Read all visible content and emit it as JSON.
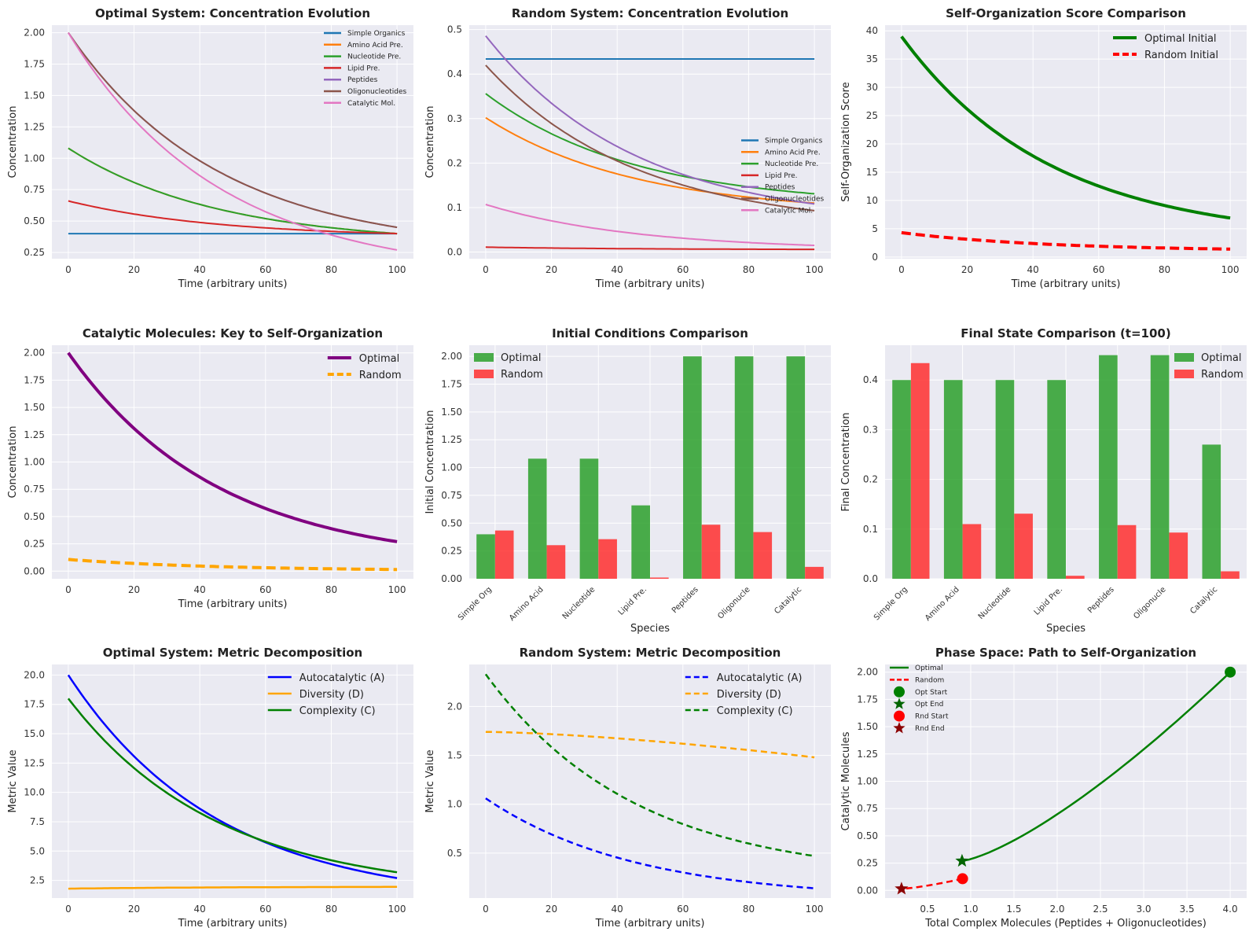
{
  "chart_data": [
    {
      "id": "p1",
      "type": "line",
      "title": "Optimal System: Concentration Evolution",
      "xlabel": "Time (arbitrary units)",
      "ylabel": "Concentration",
      "xlim": [
        -5,
        105
      ],
      "ylim": [
        0.2,
        2.06
      ],
      "xticks": [
        0,
        20,
        40,
        60,
        80,
        100
      ],
      "yticks": [
        0.25,
        0.5,
        0.75,
        1.0,
        1.25,
        1.5,
        1.75,
        2.0
      ],
      "ydecimals": 2,
      "legend": {
        "position": "top-right",
        "small": true
      },
      "series": [
        {
          "name": "Simple Organics",
          "color": "#1f77b4",
          "start": 0.4,
          "end": 0.4,
          "width": 2
        },
        {
          "name": "Amino Acid Pre.",
          "color": "#ff7f0e",
          "start": 1.08,
          "end": 0.4,
          "width": 2
        },
        {
          "name": "Nucleotide Pre.",
          "color": "#2ca02c",
          "start": 1.08,
          "end": 0.4,
          "width": 2
        },
        {
          "name": "Lipid Pre.",
          "color": "#d62728",
          "start": 0.66,
          "end": 0.4,
          "width": 2
        },
        {
          "name": "Peptides",
          "color": "#9467bd",
          "start": 2.0,
          "end": 0.45,
          "width": 2
        },
        {
          "name": "Oligonucleotides",
          "color": "#8c564b",
          "start": 2.0,
          "end": 0.45,
          "width": 2
        },
        {
          "name": "Catalytic Mol.",
          "color": "#e377c2",
          "start": 2.0,
          "end": 0.27,
          "width": 2
        }
      ]
    },
    {
      "id": "p2",
      "type": "line",
      "title": "Random System: Concentration Evolution",
      "xlabel": "Time (arbitrary units)",
      "ylabel": "Concentration",
      "xlim": [
        -5,
        105
      ],
      "ylim": [
        -0.015,
        0.51
      ],
      "xticks": [
        0,
        20,
        40,
        60,
        80,
        100
      ],
      "yticks": [
        0.0,
        0.1,
        0.2,
        0.3,
        0.4,
        0.5
      ],
      "ydecimals": 1,
      "legend": {
        "position": "center-right",
        "small": true
      },
      "series": [
        {
          "name": "Simple Organics",
          "color": "#1f77b4",
          "start": 0.434,
          "end": 0.434,
          "width": 2
        },
        {
          "name": "Amino Acid Pre.",
          "color": "#ff7f0e",
          "start": 0.302,
          "end": 0.11,
          "width": 2
        },
        {
          "name": "Nucleotide Pre.",
          "color": "#2ca02c",
          "start": 0.356,
          "end": 0.131,
          "width": 2
        },
        {
          "name": "Lipid Pre.",
          "color": "#d62728",
          "start": 0.011,
          "end": 0.006,
          "width": 2
        },
        {
          "name": "Peptides",
          "color": "#9467bd",
          "start": 0.486,
          "end": 0.108,
          "width": 2
        },
        {
          "name": "Oligonucleotides",
          "color": "#8c564b",
          "start": 0.42,
          "end": 0.093,
          "width": 2
        },
        {
          "name": "Catalytic Mol.",
          "color": "#e377c2",
          "start": 0.107,
          "end": 0.015,
          "width": 2
        }
      ]
    },
    {
      "id": "p3",
      "type": "line",
      "title": "Self-Organization Score Comparison",
      "xlabel": "Time (arbitrary units)",
      "ylabel": "Self-Organization Score",
      "xlim": [
        -5,
        105
      ],
      "ylim": [
        -0.3,
        41
      ],
      "xticks": [
        0,
        20,
        40,
        60,
        80,
        100
      ],
      "yticks": [
        0,
        5,
        10,
        15,
        20,
        25,
        30,
        35,
        40
      ],
      "ydecimals": 0,
      "legend": {
        "position": "top-right",
        "small": false
      },
      "series": [
        {
          "name": "Optimal Initial",
          "color": "#008000",
          "start": 39.0,
          "end": 6.9,
          "width": 4
        },
        {
          "name": "Random Initial",
          "color": "#ff0000",
          "start": 4.3,
          "end": 1.4,
          "width": 4,
          "dash": "12,6"
        }
      ]
    },
    {
      "id": "p4",
      "type": "line",
      "title": "Catalytic Molecules: Key to Self-Organization",
      "xlabel": "Time (arbitrary units)",
      "ylabel": "Concentration",
      "xlim": [
        -5,
        105
      ],
      "ylim": [
        -0.07,
        2.07
      ],
      "xticks": [
        0,
        20,
        40,
        60,
        80,
        100
      ],
      "yticks": [
        0.0,
        0.25,
        0.5,
        0.75,
        1.0,
        1.25,
        1.5,
        1.75,
        2.0
      ],
      "ydecimals": 2,
      "legend": {
        "position": "top-right",
        "small": false
      },
      "series": [
        {
          "name": "Optimal",
          "color": "#800080",
          "start": 2.0,
          "end": 0.27,
          "width": 4
        },
        {
          "name": "Random",
          "color": "#ffa500",
          "start": 0.107,
          "end": 0.015,
          "width": 4,
          "dash": "12,6"
        }
      ]
    },
    {
      "id": "p5",
      "type": "bar",
      "title": "Initial Conditions Comparison",
      "xlabel": "Species",
      "ylabel": "Initial Concentration",
      "ylim": [
        0,
        2.1
      ],
      "yticks": [
        0.0,
        0.25,
        0.5,
        0.75,
        1.0,
        1.25,
        1.5,
        1.75,
        2.0
      ],
      "ydecimals": 2,
      "legend": {
        "position": "top-left"
      },
      "categories": [
        "Simple Org",
        "Amino Acid",
        "Nucleotide",
        "Lipid Pre.",
        "Peptides",
        "Oligonucle",
        "Catalytic"
      ],
      "series": [
        {
          "name": "Optimal",
          "color": "#2ca02c",
          "values": [
            0.4,
            1.08,
            1.08,
            0.66,
            2.0,
            2.0,
            2.0
          ]
        },
        {
          "name": "Random",
          "color": "#ff2f2f",
          "values": [
            0.434,
            0.302,
            0.356,
            0.011,
            0.486,
            0.42,
            0.107
          ]
        }
      ]
    },
    {
      "id": "p6",
      "type": "bar",
      "title": "Final State Comparison (t=100)",
      "xlabel": "Species",
      "ylabel": "Final Concentration",
      "ylim": [
        0,
        0.47
      ],
      "yticks": [
        0.0,
        0.1,
        0.2,
        0.3,
        0.4
      ],
      "ydecimals": 1,
      "legend": {
        "position": "top-right"
      },
      "categories": [
        "Simple Org",
        "Amino Acid",
        "Nucleotide",
        "Lipid Pre.",
        "Peptides",
        "Oligonucle",
        "Catalytic"
      ],
      "series": [
        {
          "name": "Optimal",
          "color": "#2ca02c",
          "values": [
            0.4,
            0.4,
            0.4,
            0.4,
            0.45,
            0.45,
            0.27
          ]
        },
        {
          "name": "Random",
          "color": "#ff2f2f",
          "values": [
            0.434,
            0.11,
            0.131,
            0.006,
            0.108,
            0.093,
            0.015
          ]
        }
      ]
    },
    {
      "id": "p7",
      "type": "line",
      "title": "Optimal System: Metric Decomposition",
      "xlabel": "Time (arbitrary units)",
      "ylabel": "Metric Value",
      "xlim": [
        -5,
        105
      ],
      "ylim": [
        1.0,
        20.9
      ],
      "xticks": [
        0,
        20,
        40,
        60,
        80,
        100
      ],
      "yticks": [
        2.5,
        5.0,
        7.5,
        10.0,
        12.5,
        15.0,
        17.5,
        20.0
      ],
      "ydecimals": 1,
      "legend": {
        "position": "top-right",
        "small": false
      },
      "series": [
        {
          "name": "Autocatalytic (A)",
          "color": "#0000ff",
          "start": 20.0,
          "end": 2.7,
          "width": 2.5
        },
        {
          "name": "Diversity (D)",
          "color": "#ffa500",
          "start": 1.8,
          "end": 1.95,
          "width": 2.5
        },
        {
          "name": "Complexity (C)",
          "color": "#008000",
          "start": 18.0,
          "end": 3.2,
          "width": 2.5
        }
      ]
    },
    {
      "id": "p8",
      "type": "line",
      "title": "Random System: Metric Decomposition",
      "xlabel": "Time (arbitrary units)",
      "ylabel": "Metric Value",
      "xlim": [
        -5,
        105
      ],
      "ylim": [
        0.04,
        2.43
      ],
      "xticks": [
        0,
        20,
        40,
        60,
        80,
        100
      ],
      "yticks": [
        0.5,
        1.0,
        1.5,
        2.0
      ],
      "ydecimals": 1,
      "legend": {
        "position": "top-right",
        "small": false
      },
      "series": [
        {
          "name": "Autocatalytic (A)",
          "color": "#0000ff",
          "start": 1.06,
          "end": 0.14,
          "width": 2.5,
          "dash": "8,5"
        },
        {
          "name": "Diversity (D)",
          "color": "#ffa500",
          "start": 1.74,
          "end": 1.48,
          "width": 2.5,
          "dash": "8,5",
          "mode": "gentle"
        },
        {
          "name": "Complexity (C)",
          "color": "#008000",
          "start": 2.33,
          "end": 0.47,
          "width": 2.5,
          "dash": "8,5"
        }
      ]
    },
    {
      "id": "p9",
      "type": "scatter",
      "title": "Phase Space: Path to Self-Organization",
      "xlabel": "Total Complex Molecules (Peptides + Oligonucleotides)",
      "ylabel": "Catalytic Molecules",
      "xlim": [
        0.01,
        4.19
      ],
      "ylim": [
        -0.07,
        2.07
      ],
      "xticks": [
        0.5,
        1.0,
        1.5,
        2.0,
        2.5,
        3.0,
        3.5,
        4.0
      ],
      "yticks": [
        0.0,
        0.25,
        0.5,
        0.75,
        1.0,
        1.25,
        1.5,
        1.75,
        2.0
      ],
      "xdecimals": 1,
      "ydecimals": 2,
      "legend": {
        "position": "top-left",
        "small": true
      },
      "paths": [
        {
          "name": "Optimal",
          "color": "#008000",
          "x_start": 4.0,
          "y_start": 2.0,
          "x_end": 0.9,
          "y_end": 0.27
        },
        {
          "name": "Random",
          "color": "#ff0000",
          "x_start": 0.906,
          "y_start": 0.107,
          "x_end": 0.2,
          "y_end": 0.015,
          "dash": "8,5"
        }
      ],
      "points": [
        {
          "name": "Opt Start",
          "x": 4.0,
          "y": 2.0,
          "marker": "circle",
          "color": "#008000"
        },
        {
          "name": "Opt End",
          "x": 0.9,
          "y": 0.27,
          "marker": "star",
          "color": "#006400"
        },
        {
          "name": "Rnd Start",
          "x": 0.906,
          "y": 0.107,
          "marker": "circle",
          "color": "#ff0000"
        },
        {
          "name": "Rnd End",
          "x": 0.2,
          "y": 0.015,
          "marker": "star",
          "color": "#8b0000"
        }
      ]
    }
  ]
}
